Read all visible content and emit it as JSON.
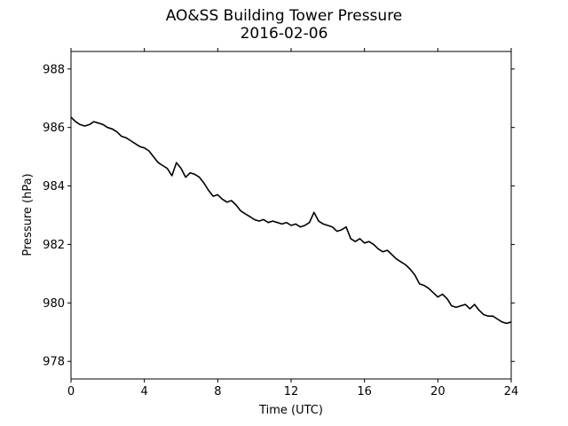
{
  "chart_data": {
    "type": "line",
    "title": "AO&SS Building Tower Pressure",
    "subtitle": "2016-02-06",
    "xlabel": "Time (UTC)",
    "ylabel": "Pressure (hPa)",
    "xlim": [
      0,
      24
    ],
    "ylim": [
      977.4,
      988.6
    ],
    "xticks": [
      0,
      4,
      8,
      12,
      16,
      20,
      24
    ],
    "yticks": [
      978,
      980,
      982,
      984,
      986,
      988
    ],
    "grid": false,
    "line_color": "#000000",
    "series": [
      {
        "x": [
          0,
          0.25,
          0.5,
          0.75,
          1.0,
          1.25,
          1.5,
          1.75,
          2.0,
          2.25,
          2.5,
          2.75,
          3.0,
          3.25,
          3.5,
          3.75,
          4.0,
          4.25,
          4.5,
          4.75,
          5.0,
          5.25,
          5.5,
          5.75,
          6.0,
          6.25,
          6.5,
          6.75,
          7.0,
          7.25,
          7.5,
          7.75,
          8.0,
          8.25,
          8.5,
          8.75,
          9.0,
          9.25,
          9.5,
          9.75,
          10.0,
          10.25,
          10.5,
          10.75,
          11.0,
          11.25,
          11.5,
          11.75,
          12.0,
          12.25,
          12.5,
          12.75,
          13.0,
          13.25,
          13.5,
          13.75,
          14.0,
          14.25,
          14.5,
          14.75,
          15.0,
          15.25,
          15.5,
          15.75,
          16.0,
          16.25,
          16.5,
          16.75,
          17.0,
          17.25,
          17.5,
          17.75,
          18.0,
          18.25,
          18.5,
          18.75,
          19.0,
          19.25,
          19.5,
          19.75,
          20.0,
          20.25,
          20.5,
          20.75,
          21.0,
          21.25,
          21.5,
          21.75,
          22.0,
          22.25,
          22.5,
          22.75,
          23.0,
          23.25,
          23.5,
          23.75,
          24.0
        ],
        "values": [
          986.35,
          986.2,
          986.1,
          986.05,
          986.1,
          986.2,
          986.15,
          986.1,
          986.0,
          985.95,
          985.85,
          985.7,
          985.65,
          985.55,
          985.45,
          985.35,
          985.3,
          985.2,
          985.0,
          984.8,
          984.7,
          984.6,
          984.35,
          984.8,
          984.6,
          984.3,
          984.45,
          984.4,
          984.3,
          984.1,
          983.85,
          983.65,
          983.7,
          983.55,
          983.45,
          983.5,
          983.35,
          983.15,
          983.05,
          982.95,
          982.85,
          982.8,
          982.85,
          982.75,
          982.8,
          982.75,
          982.7,
          982.75,
          982.65,
          982.7,
          982.6,
          982.65,
          982.75,
          983.1,
          982.8,
          982.7,
          982.65,
          982.6,
          982.45,
          982.5,
          982.6,
          982.2,
          982.1,
          982.2,
          982.05,
          982.1,
          982.0,
          981.85,
          981.75,
          981.8,
          981.65,
          981.5,
          981.4,
          981.3,
          981.15,
          980.95,
          980.65,
          980.6,
          980.5,
          980.35,
          980.2,
          980.3,
          980.15,
          979.9,
          979.85,
          979.9,
          979.95,
          979.8,
          979.95,
          979.75,
          979.6,
          979.55,
          979.55,
          979.45,
          979.35,
          979.3,
          979.35
        ]
      }
    ]
  }
}
